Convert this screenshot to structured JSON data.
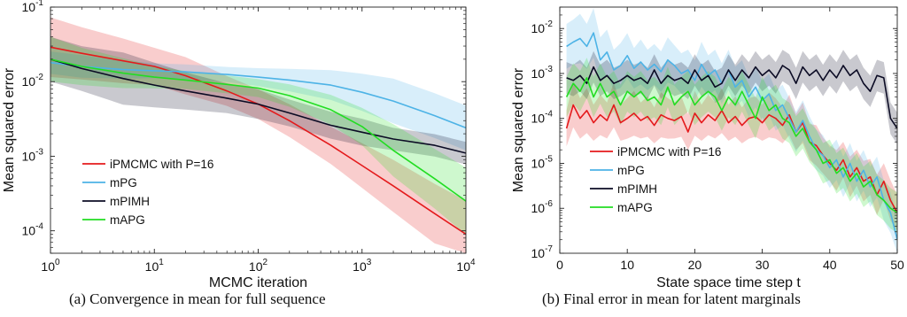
{
  "chart_data": [
    {
      "type": "line",
      "xscale": "log",
      "yscale": "log",
      "xlim": [
        1,
        10000
      ],
      "ylim": [
        5e-05,
        0.1
      ],
      "xlabel": "MCMC iteration",
      "ylabel": "Mean squared error",
      "x_ticks": [
        {
          "base": "10",
          "exp": "0"
        },
        {
          "base": "10",
          "exp": "1"
        },
        {
          "base": "10",
          "exp": "2"
        },
        {
          "base": "10",
          "exp": "3"
        },
        {
          "base": "10",
          "exp": "4"
        }
      ],
      "y_ticks": [
        {
          "base": "10",
          "exp": "-4"
        },
        {
          "base": "10",
          "exp": "-3"
        },
        {
          "base": "10",
          "exp": "-2"
        },
        {
          "base": "10",
          "exp": "-1"
        }
      ],
      "legend_position": "lower-left",
      "caption": "(a) Convergence in mean for full sequence",
      "series": [
        {
          "name": "iPMCMC with P=16",
          "color": "#e41a1c",
          "x": [
            1,
            2,
            5,
            10,
            20,
            50,
            100,
            200,
            500,
            1000,
            2000,
            5000,
            10000
          ],
          "y": [
            0.029,
            0.024,
            0.019,
            0.016,
            0.012,
            0.0075,
            0.005,
            0.003,
            0.0014,
            0.00075,
            0.0004,
            0.00017,
            9e-05
          ],
          "band": [
            0.4,
            0.35,
            0.3,
            0.25,
            0.25,
            0.2,
            0.2,
            0.22,
            0.25,
            0.3,
            0.35,
            0.4,
            0.45
          ]
        },
        {
          "name": "mPG",
          "color": "#4db3e6",
          "x": [
            1,
            2,
            5,
            10,
            20,
            50,
            100,
            200,
            500,
            1000,
            2000,
            5000,
            10000
          ],
          "y": [
            0.018,
            0.016,
            0.0145,
            0.014,
            0.0135,
            0.0125,
            0.0115,
            0.0105,
            0.009,
            0.0072,
            0.0055,
            0.0035,
            0.0024
          ],
          "band": [
            0.15,
            0.15,
            0.12,
            0.1,
            0.1,
            0.1,
            0.12,
            0.15,
            0.2,
            0.25,
            0.3,
            0.3,
            0.3
          ]
        },
        {
          "name": "mPIMH",
          "color": "#0b0b24",
          "x": [
            1,
            2,
            5,
            10,
            20,
            50,
            100,
            200,
            500,
            1000,
            2000,
            5000,
            10000
          ],
          "y": [
            0.02,
            0.015,
            0.011,
            0.009,
            0.0075,
            0.006,
            0.005,
            0.0038,
            0.0026,
            0.0021,
            0.0017,
            0.0014,
            0.0011
          ],
          "band": [
            0.3,
            0.3,
            0.35,
            0.3,
            0.25,
            0.2,
            0.2,
            0.18,
            0.18,
            0.18,
            0.15,
            0.15,
            0.15
          ]
        },
        {
          "name": "mAPG",
          "color": "#22dd22",
          "x": [
            1,
            2,
            5,
            10,
            20,
            50,
            100,
            200,
            500,
            1000,
            2000,
            5000,
            10000
          ],
          "y": [
            0.02,
            0.016,
            0.013,
            0.0115,
            0.0105,
            0.0092,
            0.0082,
            0.0065,
            0.0042,
            0.0025,
            0.0012,
            0.0005,
            0.00025
          ],
          "band": [
            0.3,
            0.25,
            0.2,
            0.15,
            0.12,
            0.12,
            0.12,
            0.15,
            0.2,
            0.25,
            0.35,
            0.4,
            0.45
          ]
        }
      ]
    },
    {
      "type": "line",
      "xscale": "linear",
      "yscale": "log",
      "xlim": [
        0,
        50
      ],
      "ylim": [
        1e-07,
        0.03
      ],
      "xlabel": "State space time step t",
      "ylabel": "Mean squared error",
      "x_ticks": [
        "0",
        "10",
        "20",
        "30",
        "40",
        "50"
      ],
      "y_ticks": [
        {
          "base": "10",
          "exp": "-7"
        },
        {
          "base": "10",
          "exp": "-6"
        },
        {
          "base": "10",
          "exp": "-5"
        },
        {
          "base": "10",
          "exp": "-4"
        },
        {
          "base": "10",
          "exp": "-3"
        },
        {
          "base": "10",
          "exp": "-2"
        }
      ],
      "legend_position": "lower-left",
      "caption": "(b) Final error in mean for latent marginals",
      "series": [
        {
          "name": "iPMCMC with P=16",
          "color": "#e41a1c",
          "x": [
            1,
            2,
            3,
            4,
            5,
            6,
            7,
            8,
            9,
            10,
            11,
            12,
            13,
            14,
            15,
            16,
            17,
            18,
            19,
            20,
            21,
            22,
            23,
            24,
            25,
            26,
            27,
            28,
            29,
            30,
            31,
            32,
            33,
            34,
            35,
            36,
            37,
            38,
            39,
            40,
            41,
            42,
            43,
            44,
            45,
            46,
            47,
            48,
            49,
            50
          ],
          "y": [
            6e-05,
            0.0002,
            0.0001,
            0.00015,
            8e-05,
            0.00012,
            9e-05,
            0.0002,
            8e-05,
            0.0001,
            0.00013,
            9e-05,
            0.00011,
            7e-05,
            0.00012,
            0.0001,
            9e-05,
            0.00011,
            5e-05,
            0.00013,
            8e-05,
            0.00012,
            9e-05,
            0.00015,
            8e-05,
            0.00011,
            7e-05,
            0.0001,
            0.00011,
            8e-05,
            0.00012,
            0.0001,
            7e-05,
            0.00012,
            5e-05,
            8e-05,
            3e-05,
            2.5e-05,
            1.5e-05,
            1e-05,
            7e-06,
            1.2e-05,
            5e-06,
            8e-06,
            4e-06,
            5e-06,
            2e-06,
            4e-06,
            1.5e-06,
            8e-07
          ],
          "band": [
            0.4,
            0.5,
            0.45,
            0.5,
            0.4,
            0.45,
            0.4,
            0.5,
            0.4,
            0.45,
            0.5,
            0.4,
            0.45,
            0.4,
            0.5,
            0.45,
            0.4,
            0.45,
            0.4,
            0.5,
            0.4,
            0.45,
            0.4,
            0.5,
            0.4,
            0.45,
            0.4,
            0.45,
            0.45,
            0.4,
            0.5,
            0.45,
            0.4,
            0.45,
            0.4,
            0.45,
            0.4,
            0.45,
            0.4,
            0.4,
            0.45,
            0.4,
            0.45,
            0.4,
            0.45,
            0.4,
            0.45,
            0.4,
            0.45,
            0.4
          ]
        },
        {
          "name": "mPG",
          "color": "#4db3e6",
          "x": [
            1,
            2,
            3,
            4,
            5,
            6,
            7,
            8,
            9,
            10,
            11,
            12,
            13,
            14,
            15,
            16,
            17,
            18,
            19,
            20,
            21,
            22,
            23,
            24,
            25,
            26,
            27,
            28,
            29,
            30,
            31,
            32,
            33,
            34,
            35,
            36,
            37,
            38,
            39,
            40,
            41,
            42,
            43,
            44,
            45,
            46,
            47,
            48,
            49,
            50
          ],
          "y": [
            0.004,
            0.005,
            0.006,
            0.004,
            0.008,
            0.002,
            0.003,
            0.0012,
            0.0015,
            0.0025,
            0.0013,
            0.0018,
            0.0012,
            0.0016,
            0.0011,
            0.002,
            0.0015,
            0.001,
            0.0012,
            0.0007,
            0.0016,
            0.0009,
            0.0012,
            0.0006,
            0.0012,
            0.0005,
            0.0007,
            0.0003,
            0.0005,
            0.00025,
            0.00035,
            0.00015,
            0.0002,
            0.0001,
            5e-05,
            9e-05,
            4e-05,
            2e-05,
            1.5e-05,
            8e-06,
            1.2e-05,
            5e-06,
            1e-05,
            4e-06,
            7e-06,
            3e-06,
            5e-06,
            1.5e-06,
            8e-07,
            2e-07
          ],
          "band": [
            0.5,
            0.5,
            0.55,
            0.5,
            0.55,
            0.5,
            0.5,
            0.45,
            0.5,
            0.5,
            0.45,
            0.5,
            0.45,
            0.45,
            0.45,
            0.5,
            0.45,
            0.45,
            0.45,
            0.45,
            0.5,
            0.45,
            0.45,
            0.45,
            0.45,
            0.45,
            0.45,
            0.45,
            0.45,
            0.45,
            0.45,
            0.45,
            0.45,
            0.45,
            0.45,
            0.45,
            0.45,
            0.45,
            0.45,
            0.45,
            0.45,
            0.45,
            0.45,
            0.45,
            0.45,
            0.45,
            0.45,
            0.45,
            0.45,
            0.45
          ]
        },
        {
          "name": "mPIMH",
          "color": "#0b0b24",
          "x": [
            1,
            2,
            3,
            4,
            5,
            6,
            7,
            8,
            9,
            10,
            11,
            12,
            13,
            14,
            15,
            16,
            17,
            18,
            19,
            20,
            21,
            22,
            23,
            24,
            25,
            26,
            27,
            28,
            29,
            30,
            31,
            32,
            33,
            34,
            35,
            36,
            37,
            38,
            39,
            40,
            41,
            42,
            43,
            44,
            45,
            46,
            47,
            48,
            49,
            50
          ],
          "y": [
            0.0008,
            0.0007,
            0.0009,
            0.0006,
            0.0014,
            0.0007,
            0.0009,
            0.0006,
            0.0007,
            0.0009,
            0.0007,
            0.0008,
            0.0006,
            0.0012,
            0.0006,
            0.0009,
            0.0007,
            0.0008,
            0.0006,
            0.0012,
            0.0007,
            0.0009,
            0.0005,
            0.0006,
            0.0012,
            0.0007,
            0.0012,
            0.0008,
            0.0014,
            0.0009,
            0.0012,
            0.0008,
            0.0015,
            0.0012,
            0.0006,
            0.0014,
            0.0009,
            0.0012,
            0.0007,
            0.0012,
            0.0008,
            0.0015,
            0.0009,
            0.0012,
            0.0006,
            0.0004,
            0.0009,
            0.0008,
            0.0001,
            6e-05
          ],
          "band": [
            0.35,
            0.35,
            0.35,
            0.35,
            0.35,
            0.35,
            0.35,
            0.35,
            0.35,
            0.35,
            0.35,
            0.35,
            0.35,
            0.35,
            0.35,
            0.35,
            0.35,
            0.35,
            0.35,
            0.35,
            0.35,
            0.35,
            0.35,
            0.35,
            0.35,
            0.35,
            0.35,
            0.35,
            0.35,
            0.35,
            0.35,
            0.35,
            0.35,
            0.35,
            0.35,
            0.35,
            0.35,
            0.35,
            0.35,
            0.35,
            0.35,
            0.35,
            0.35,
            0.35,
            0.35,
            0.35,
            0.35,
            0.35,
            0.35,
            0.35
          ]
        },
        {
          "name": "mAPG",
          "color": "#22dd22",
          "x": [
            1,
            2,
            3,
            4,
            5,
            6,
            7,
            8,
            9,
            10,
            11,
            12,
            13,
            14,
            15,
            16,
            17,
            18,
            19,
            20,
            21,
            22,
            23,
            24,
            25,
            26,
            27,
            28,
            29,
            30,
            31,
            32,
            33,
            34,
            35,
            36,
            37,
            38,
            39,
            40,
            41,
            42,
            43,
            44,
            45,
            46,
            47,
            48,
            49,
            50
          ],
          "y": [
            0.0003,
            0.0006,
            0.0004,
            0.0008,
            0.0003,
            0.0006,
            0.0003,
            0.0004,
            0.0002,
            0.0004,
            0.0003,
            0.0004,
            0.00025,
            0.0003,
            0.0002,
            0.0005,
            0.0002,
            0.0003,
            0.0004,
            0.0002,
            0.0003,
            0.0004,
            0.0003,
            0.00015,
            0.0003,
            0.0002,
            0.0004,
            0.0002,
            0.0001,
            0.0003,
            0.00015,
            0.0002,
            0.0001,
            8e-05,
            4e-05,
            6e-05,
            3e-05,
            2e-05,
            1e-05,
            1.2e-05,
            6e-06,
            8e-06,
            4e-06,
            6e-06,
            3e-06,
            4e-06,
            2e-06,
            1.5e-06,
            1e-06,
            8e-07
          ],
          "band": [
            0.45,
            0.45,
            0.45,
            0.45,
            0.45,
            0.45,
            0.45,
            0.45,
            0.45,
            0.45,
            0.45,
            0.45,
            0.45,
            0.45,
            0.45,
            0.45,
            0.45,
            0.45,
            0.45,
            0.45,
            0.45,
            0.45,
            0.45,
            0.45,
            0.45,
            0.45,
            0.45,
            0.45,
            0.45,
            0.45,
            0.45,
            0.45,
            0.45,
            0.45,
            0.45,
            0.45,
            0.45,
            0.45,
            0.45,
            0.45,
            0.45,
            0.45,
            0.45,
            0.45,
            0.45,
            0.45,
            0.45,
            0.45,
            0.45,
            0.45
          ]
        }
      ]
    }
  ]
}
